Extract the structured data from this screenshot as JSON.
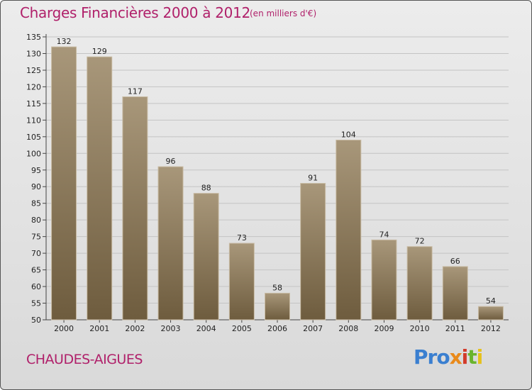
{
  "header": {
    "title": "Charges Financières 2000 à 2012",
    "unit": "(en milliers d'€)"
  },
  "commune": "CHAUDES-AIGUES",
  "logo": {
    "parts": [
      "Pro",
      "x",
      "i",
      "t",
      "i"
    ]
  },
  "colors": {
    "title": "#b0206a",
    "bar_top": "#a8977a",
    "bar_bottom": "#6e5c3e"
  },
  "chart_data": {
    "type": "bar",
    "categories": [
      "2000",
      "2001",
      "2002",
      "2003",
      "2004",
      "2005",
      "2006",
      "2007",
      "2008",
      "2009",
      "2010",
      "2011",
      "2012"
    ],
    "values": [
      132,
      129,
      117,
      96,
      88,
      73,
      58,
      91,
      104,
      74,
      72,
      66,
      54
    ],
    "ylim": [
      50,
      135
    ],
    "yticks": [
      50,
      55,
      60,
      65,
      70,
      75,
      80,
      85,
      90,
      95,
      100,
      105,
      110,
      115,
      120,
      125,
      130,
      135
    ],
    "grid": true
  }
}
